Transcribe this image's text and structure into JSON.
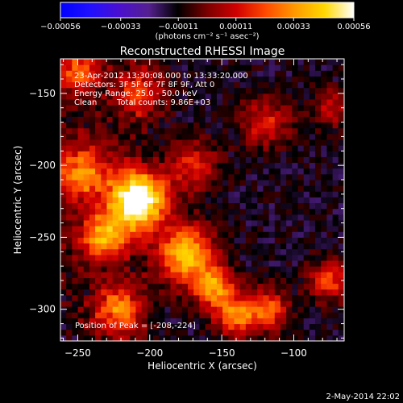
{
  "chart_data": {
    "type": "heatmap",
    "title": "Reconstructed RHESSI Image",
    "xlabel": "Heliocentric X (arcsec)",
    "ylabel": "Heliocentric Y (arcsec)",
    "xlim": [
      -262,
      -65
    ],
    "ylim": [
      -322,
      -126
    ],
    "x_ticks": [
      -250,
      -200,
      -150,
      -100
    ],
    "y_ticks": [
      -300,
      -250,
      -200,
      -150
    ],
    "x_tick_labels": [
      "−250",
      "−200",
      "−150",
      "−100"
    ],
    "y_tick_labels": [
      "−300",
      "−250",
      "−200",
      "−150"
    ],
    "colorbar": {
      "min": -0.00056,
      "max": 0.00056,
      "ticks": [
        -0.00056,
        -0.00033,
        -0.00011,
        0.00011,
        0.00033,
        0.00056
      ],
      "tick_labels": [
        "−0.00056",
        "−0.00033",
        "−0.00011",
        "0.00011",
        "0.00033",
        "0.00056"
      ],
      "unit_label": "(photons cm⁻² s⁻¹ asec⁻²)",
      "colors": [
        "#0000ff",
        "#2010ff",
        "#4a10d0",
        "#552090",
        "#000000",
        "#7a0000",
        "#d00000",
        "#ff4a00",
        "#ff9a00",
        "#ffd800",
        "#ffffff"
      ]
    },
    "annotations": [
      "23-Apr-2012 13:30:08.000 to 13:33:20.000",
      "Detectors: 3F 5F 6F 7F 8F 9F, Att 0",
      "Energy Range: 25.0 - 50.0 keV",
      "Clean",
      "Total counts: 9.86E+03"
    ],
    "peak_label": "Position of Peak = [-208,-224]",
    "peak": [
      -208,
      -224
    ],
    "grid": false
  },
  "footer": {
    "date": "2-May-2014 22:02"
  }
}
